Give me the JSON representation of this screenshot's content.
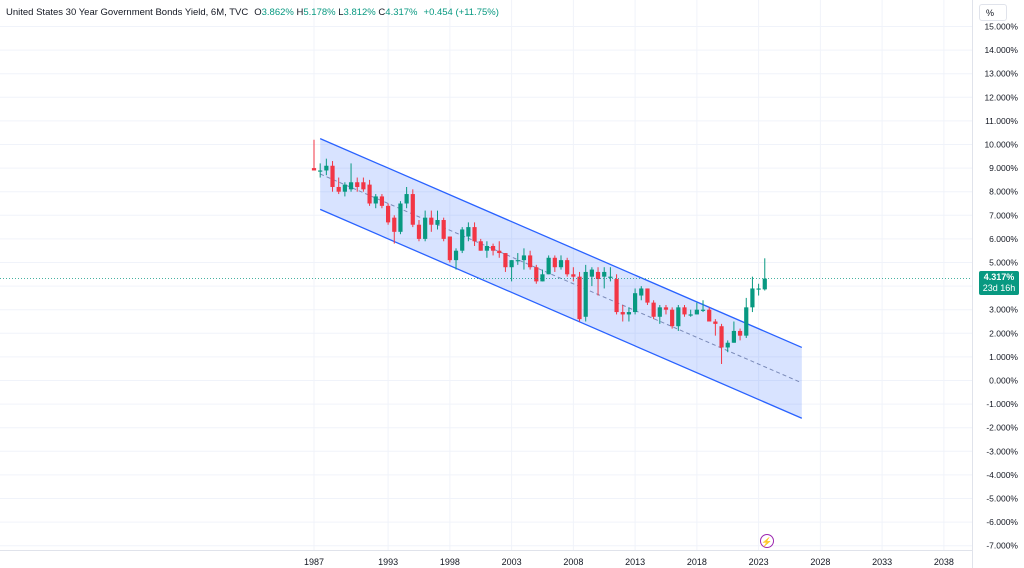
{
  "header": {
    "title": "United States 30 Year Government Bonds Yield, 6M, TVC",
    "open_label": "O",
    "open_value": "3.862%",
    "high_label": "H",
    "high_value": "5.178%",
    "low_label": "L",
    "low_value": "3.812%",
    "close_label": "C",
    "close_value": "4.317%",
    "change": "+0.454 (+11.75%)"
  },
  "scale_unit": "%",
  "price_tag": {
    "value": "4.317%",
    "countdown": "23d 16h"
  },
  "event_icon": "lightning-icon",
  "colors": {
    "up": "#089981",
    "down": "#f23645",
    "channel": "#2962ff",
    "channel_fill": "#2962ff",
    "grid": "#f0f3fa"
  },
  "chart_data": {
    "type": "candlestick",
    "title": "United States 30 Year Government Bonds Yield, 6M, TVC",
    "x_tick_labels": [
      "1987",
      "1993",
      "1998",
      "2003",
      "2008",
      "2013",
      "2018",
      "2023",
      "2028",
      "2033",
      "2038"
    ],
    "y_tick_labels": [
      "-7.000%",
      "-6.000%",
      "-5.000%",
      "-4.000%",
      "-3.000%",
      "-2.000%",
      "-1.000%",
      "0.000%",
      "1.000%",
      "2.000%",
      "3.000%",
      "4.000%",
      "5.000%",
      "6.000%",
      "7.000%",
      "8.000%",
      "9.000%",
      "10.000%",
      "11.000%",
      "12.000%",
      "13.000%",
      "14.000%",
      "15.000%"
    ],
    "ylim": [
      -7.2,
      15.4
    ],
    "xlim": [
      1986.5,
      2040
    ],
    "last_close": 4.317,
    "candles": [
      {
        "t": 1987.0,
        "o": 9.0,
        "h": 10.2,
        "l": 8.9,
        "c": 8.9
      },
      {
        "t": 1987.5,
        "o": 8.9,
        "h": 9.2,
        "l": 8.6,
        "c": 8.9
      },
      {
        "t": 1988.0,
        "o": 8.9,
        "h": 9.4,
        "l": 8.7,
        "c": 9.1
      },
      {
        "t": 1988.5,
        "o": 9.1,
        "h": 9.3,
        "l": 8.0,
        "c": 8.2
      },
      {
        "t": 1989.0,
        "o": 8.2,
        "h": 8.6,
        "l": 7.9,
        "c": 8.0
      },
      {
        "t": 1989.5,
        "o": 8.0,
        "h": 8.4,
        "l": 7.8,
        "c": 8.3
      },
      {
        "t": 1990.0,
        "o": 8.1,
        "h": 9.2,
        "l": 8.0,
        "c": 8.4
      },
      {
        "t": 1990.5,
        "o": 8.4,
        "h": 8.6,
        "l": 8.0,
        "c": 8.2
      },
      {
        "t": 1991.0,
        "o": 8.4,
        "h": 8.6,
        "l": 8.0,
        "c": 8.1
      },
      {
        "t": 1991.5,
        "o": 8.3,
        "h": 8.5,
        "l": 7.4,
        "c": 7.5
      },
      {
        "t": 1992.0,
        "o": 7.5,
        "h": 7.9,
        "l": 7.3,
        "c": 7.8
      },
      {
        "t": 1992.5,
        "o": 7.8,
        "h": 7.9,
        "l": 7.3,
        "c": 7.4
      },
      {
        "t": 1993.0,
        "o": 7.4,
        "h": 7.5,
        "l": 6.6,
        "c": 6.7
      },
      {
        "t": 1993.5,
        "o": 6.9,
        "h": 7.0,
        "l": 5.8,
        "c": 6.3
      },
      {
        "t": 1994.0,
        "o": 6.3,
        "h": 7.6,
        "l": 6.2,
        "c": 7.5
      },
      {
        "t": 1994.5,
        "o": 7.5,
        "h": 8.2,
        "l": 7.3,
        "c": 7.9
      },
      {
        "t": 1995.0,
        "o": 7.9,
        "h": 8.1,
        "l": 6.5,
        "c": 6.6
      },
      {
        "t": 1995.5,
        "o": 6.6,
        "h": 6.8,
        "l": 5.9,
        "c": 6.0
      },
      {
        "t": 1996.0,
        "o": 6.0,
        "h": 7.2,
        "l": 5.9,
        "c": 6.9
      },
      {
        "t": 1996.5,
        "o": 6.9,
        "h": 7.2,
        "l": 6.3,
        "c": 6.6
      },
      {
        "t": 1997.0,
        "o": 6.6,
        "h": 7.2,
        "l": 6.4,
        "c": 6.8
      },
      {
        "t": 1997.5,
        "o": 6.8,
        "h": 6.9,
        "l": 5.9,
        "c": 6.0
      },
      {
        "t": 1998.0,
        "o": 6.1,
        "h": 6.1,
        "l": 5.0,
        "c": 5.1
      },
      {
        "t": 1998.5,
        "o": 5.1,
        "h": 5.6,
        "l": 4.7,
        "c": 5.5
      },
      {
        "t": 1999.0,
        "o": 5.5,
        "h": 6.5,
        "l": 5.4,
        "c": 6.4
      },
      {
        "t": 1999.5,
        "o": 6.1,
        "h": 6.7,
        "l": 5.9,
        "c": 6.5
      },
      {
        "t": 2000.0,
        "o": 6.5,
        "h": 6.7,
        "l": 5.7,
        "c": 5.9
      },
      {
        "t": 2000.5,
        "o": 5.9,
        "h": 6.0,
        "l": 5.5,
        "c": 5.5
      },
      {
        "t": 2001.0,
        "o": 5.5,
        "h": 5.9,
        "l": 5.2,
        "c": 5.7
      },
      {
        "t": 2001.5,
        "o": 5.7,
        "h": 5.8,
        "l": 5.3,
        "c": 5.5
      },
      {
        "t": 2002.0,
        "o": 5.5,
        "h": 5.9,
        "l": 5.2,
        "c": 5.4
      },
      {
        "t": 2002.5,
        "o": 5.4,
        "h": 5.4,
        "l": 4.6,
        "c": 4.8
      },
      {
        "t": 2003.0,
        "o": 4.8,
        "h": 5.1,
        "l": 4.2,
        "c": 5.1
      },
      {
        "t": 2003.5,
        "o": 5.1,
        "h": 5.4,
        "l": 4.9,
        "c": 5.1
      },
      {
        "t": 2004.0,
        "o": 5.1,
        "h": 5.6,
        "l": 4.7,
        "c": 5.3
      },
      {
        "t": 2004.5,
        "o": 5.3,
        "h": 5.5,
        "l": 4.7,
        "c": 4.8
      },
      {
        "t": 2005.0,
        "o": 4.8,
        "h": 4.9,
        "l": 4.1,
        "c": 4.2
      },
      {
        "t": 2005.5,
        "o": 4.2,
        "h": 4.7,
        "l": 4.2,
        "c": 4.5
      },
      {
        "t": 2006.0,
        "o": 4.5,
        "h": 5.3,
        "l": 4.5,
        "c": 5.2
      },
      {
        "t": 2006.5,
        "o": 5.2,
        "h": 5.3,
        "l": 4.6,
        "c": 4.8
      },
      {
        "t": 2007.0,
        "o": 4.8,
        "h": 5.3,
        "l": 4.7,
        "c": 5.1
      },
      {
        "t": 2007.5,
        "o": 5.1,
        "h": 5.2,
        "l": 4.4,
        "c": 4.5
      },
      {
        "t": 2008.0,
        "o": 4.5,
        "h": 4.8,
        "l": 4.2,
        "c": 4.4
      },
      {
        "t": 2008.5,
        "o": 4.4,
        "h": 4.6,
        "l": 2.5,
        "c": 2.6
      },
      {
        "t": 2009.0,
        "o": 2.7,
        "h": 4.9,
        "l": 2.5,
        "c": 4.6
      },
      {
        "t": 2009.5,
        "o": 4.4,
        "h": 4.8,
        "l": 4.0,
        "c": 4.7
      },
      {
        "t": 2010.0,
        "o": 4.6,
        "h": 4.8,
        "l": 3.6,
        "c": 4.3
      },
      {
        "t": 2010.5,
        "o": 4.4,
        "h": 4.8,
        "l": 3.9,
        "c": 4.6
      },
      {
        "t": 2011.0,
        "o": 4.4,
        "h": 4.8,
        "l": 4.2,
        "c": 4.4
      },
      {
        "t": 2011.5,
        "o": 4.3,
        "h": 4.5,
        "l": 2.8,
        "c": 2.9
      },
      {
        "t": 2012.0,
        "o": 2.9,
        "h": 3.2,
        "l": 2.5,
        "c": 2.8
      },
      {
        "t": 2012.5,
        "o": 2.8,
        "h": 3.1,
        "l": 2.5,
        "c": 2.9
      },
      {
        "t": 2013.0,
        "o": 2.9,
        "h": 3.9,
        "l": 2.8,
        "c": 3.7
      },
      {
        "t": 2013.5,
        "o": 3.6,
        "h": 4.0,
        "l": 3.4,
        "c": 3.9
      },
      {
        "t": 2014.0,
        "o": 3.9,
        "h": 3.9,
        "l": 3.2,
        "c": 3.3
      },
      {
        "t": 2014.5,
        "o": 3.3,
        "h": 3.4,
        "l": 2.6,
        "c": 2.7
      },
      {
        "t": 2015.0,
        "o": 2.7,
        "h": 3.2,
        "l": 2.4,
        "c": 3.1
      },
      {
        "t": 2015.5,
        "o": 3.1,
        "h": 3.2,
        "l": 2.8,
        "c": 3.0
      },
      {
        "t": 2016.0,
        "o": 3.0,
        "h": 3.1,
        "l": 2.2,
        "c": 2.3
      },
      {
        "t": 2016.5,
        "o": 2.3,
        "h": 3.2,
        "l": 2.1,
        "c": 3.1
      },
      {
        "t": 2017.0,
        "o": 3.1,
        "h": 3.2,
        "l": 2.7,
        "c": 2.8
      },
      {
        "t": 2017.5,
        "o": 2.8,
        "h": 3.0,
        "l": 2.7,
        "c": 2.8
      },
      {
        "t": 2018.0,
        "o": 2.8,
        "h": 3.3,
        "l": 2.8,
        "c": 3.0
      },
      {
        "t": 2018.5,
        "o": 3.0,
        "h": 3.4,
        "l": 2.9,
        "c": 3.0
      },
      {
        "t": 2019.0,
        "o": 3.0,
        "h": 3.1,
        "l": 2.5,
        "c": 2.5
      },
      {
        "t": 2019.5,
        "o": 2.5,
        "h": 2.6,
        "l": 1.9,
        "c": 2.4
      },
      {
        "t": 2020.0,
        "o": 2.3,
        "h": 2.4,
        "l": 0.7,
        "c": 1.4
      },
      {
        "t": 2020.5,
        "o": 1.4,
        "h": 1.7,
        "l": 1.2,
        "c": 1.6
      },
      {
        "t": 2021.0,
        "o": 1.6,
        "h": 2.5,
        "l": 1.6,
        "c": 2.1
      },
      {
        "t": 2021.5,
        "o": 2.1,
        "h": 2.2,
        "l": 1.7,
        "c": 1.9
      },
      {
        "t": 2022.0,
        "o": 1.9,
        "h": 3.5,
        "l": 1.8,
        "c": 3.1
      },
      {
        "t": 2022.5,
        "o": 3.1,
        "h": 4.4,
        "l": 2.9,
        "c": 3.9
      },
      {
        "t": 2023.0,
        "o": 3.9,
        "h": 4.1,
        "l": 3.6,
        "c": 3.9
      },
      {
        "t": 2023.5,
        "o": 3.862,
        "h": 5.178,
        "l": 3.812,
        "c": 4.317
      }
    ],
    "channel": {
      "upper": [
        [
          1987.5,
          10.25
        ],
        [
          2026.5,
          1.4
        ]
      ],
      "lower": [
        [
          1987.5,
          7.25
        ],
        [
          2026.5,
          -1.6
        ]
      ],
      "mid": [
        [
          1987.5,
          8.75
        ],
        [
          2026.5,
          -0.1
        ]
      ]
    }
  }
}
